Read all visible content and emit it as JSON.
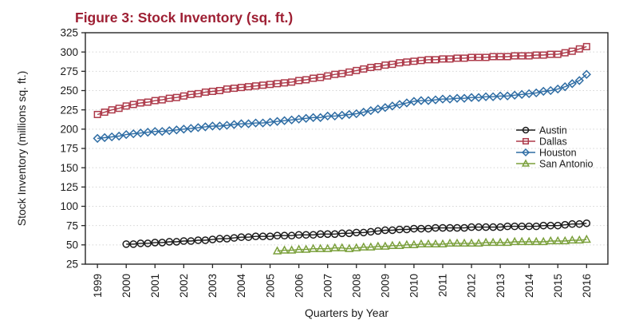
{
  "figure": {
    "window_title": "Figure 3: Stock Inventory (sq. ft.)"
  },
  "chart_data": {
    "type": "line",
    "title": "Figure 3: Stock Inventory (sq. ft.)",
    "title_color": "#9e1f33",
    "xlabel": "Quarters by Year",
    "ylabel": "Stock Inventory (millions sq. ft.)",
    "x_frequency": "quarterly",
    "xlim": [
      1998.58,
      2016.74
    ],
    "ylim": [
      25,
      325
    ],
    "xticks": [
      1999,
      2000,
      2001,
      2002,
      2003,
      2004,
      2005,
      2006,
      2007,
      2008,
      2009,
      2010,
      2011,
      2012,
      2013,
      2014,
      2015,
      2016
    ],
    "yticks": [
      25,
      50,
      75,
      100,
      125,
      150,
      175,
      200,
      225,
      250,
      275,
      300,
      325
    ],
    "grid": "horizontal-dotted",
    "grid_color": "#d4d4d4",
    "axis_color": "#262626",
    "tick_label_color": "#1a1a1a",
    "legend_position": "inside-right-middle",
    "series": [
      {
        "name": "Austin",
        "color": "#1b1b1b",
        "marker": "circle",
        "x_start": 2000.0,
        "x_step": 0.25,
        "values": [
          51,
          51,
          52,
          52,
          53,
          53,
          54,
          54,
          55,
          55,
          56,
          56,
          57,
          58,
          58,
          59,
          60,
          60,
          61,
          61,
          61,
          62,
          62,
          62,
          63,
          63,
          63,
          64,
          64,
          64,
          65,
          65,
          66,
          66,
          67,
          68,
          69,
          69,
          70,
          70,
          71,
          71,
          71,
          72,
          72,
          72,
          72,
          72,
          73,
          73,
          73,
          73,
          73,
          74,
          74,
          74,
          74,
          74,
          75,
          75,
          75,
          76,
          77,
          77,
          78
        ]
      },
      {
        "name": "Dallas",
        "color": "#ad3a4a",
        "marker": "square",
        "x_start": 1999.0,
        "x_step": 0.25,
        "values": [
          219,
          222,
          225,
          227,
          230,
          232,
          234,
          235,
          237,
          238,
          240,
          241,
          243,
          245,
          246,
          248,
          249,
          250,
          252,
          253,
          254,
          255,
          256,
          257,
          258,
          259,
          260,
          261,
          263,
          264,
          266,
          267,
          269,
          271,
          272,
          274,
          276,
          278,
          280,
          281,
          283,
          284,
          286,
          287,
          288,
          289,
          290,
          290,
          291,
          291,
          292,
          292,
          293,
          293,
          293,
          294,
          294,
          294,
          295,
          295,
          295,
          296,
          296,
          297,
          297,
          299,
          301,
          304,
          307
        ]
      },
      {
        "name": "Houston",
        "color": "#2f6da4",
        "marker": "diamond",
        "x_start": 1999.0,
        "x_step": 0.25,
        "values": [
          188,
          189,
          190,
          191,
          193,
          194,
          195,
          196,
          197,
          197,
          198,
          199,
          200,
          201,
          202,
          203,
          204,
          204,
          205,
          206,
          207,
          207,
          208,
          208,
          209,
          210,
          211,
          212,
          213,
          214,
          215,
          215,
          217,
          217,
          218,
          219,
          220,
          222,
          224,
          226,
          228,
          230,
          232,
          234,
          236,
          237,
          237,
          238,
          239,
          239,
          240,
          240,
          241,
          241,
          242,
          242,
          243,
          243,
          244,
          245,
          246,
          247,
          249,
          250,
          252,
          255,
          259,
          263,
          271
        ]
      },
      {
        "name": "San Antonio",
        "color": "#7ba03c",
        "marker": "triangle",
        "x_start": 2005.25,
        "x_step": 0.25,
        "values": [
          42,
          43,
          43,
          44,
          44,
          45,
          45,
          45,
          46,
          46,
          45,
          46,
          47,
          47,
          48,
          48,
          49,
          49,
          50,
          50,
          51,
          51,
          51,
          51,
          52,
          52,
          52,
          52,
          52,
          53,
          53,
          53,
          53,
          54,
          54,
          54,
          54,
          54,
          55,
          55,
          55,
          56,
          56,
          57
        ]
      }
    ]
  }
}
